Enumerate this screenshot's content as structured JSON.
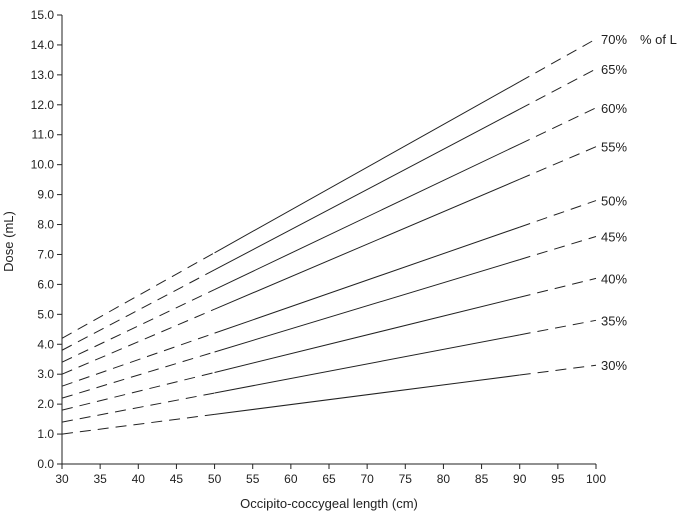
{
  "chart_data": {
    "type": "line",
    "title": "",
    "xlabel": "Occipito-coccygeal length (cm)",
    "ylabel": "Dose (mL)",
    "xlim": [
      30,
      100
    ],
    "ylim": [
      0,
      15
    ],
    "x_ticks": [
      "30",
      "35",
      "40",
      "45",
      "50",
      "55",
      "60",
      "65",
      "70",
      "75",
      "80",
      "85",
      "90",
      "95",
      "100"
    ],
    "y_ticks": [
      "0.0",
      "1.0",
      "2.0",
      "3.0",
      "4.0",
      "5.0",
      "6.0",
      "7.0",
      "8.0",
      "9.0",
      "10.0",
      "11.0",
      "12.0",
      "13.0",
      "14.0",
      "15.0"
    ],
    "legend_suffix": "% of L",
    "solid_range": [
      50,
      90
    ],
    "line_color": "#222222",
    "series": [
      {
        "name": "70%",
        "x": [
          30,
          100
        ],
        "y": [
          4.2,
          14.2
        ]
      },
      {
        "name": "65%",
        "x": [
          30,
          100
        ],
        "y": [
          3.8,
          13.2
        ]
      },
      {
        "name": "60%",
        "x": [
          30,
          100
        ],
        "y": [
          3.4,
          11.9
        ]
      },
      {
        "name": "55%",
        "x": [
          30,
          100
        ],
        "y": [
          3.0,
          10.6
        ]
      },
      {
        "name": "50%",
        "x": [
          30,
          100
        ],
        "y": [
          2.6,
          8.8
        ]
      },
      {
        "name": "45%",
        "x": [
          30,
          100
        ],
        "y": [
          2.2,
          7.6
        ]
      },
      {
        "name": "40%",
        "x": [
          30,
          100
        ],
        "y": [
          1.8,
          6.2
        ]
      },
      {
        "name": "35%",
        "x": [
          30,
          100
        ],
        "y": [
          1.4,
          4.8
        ]
      },
      {
        "name": "30%",
        "x": [
          30,
          100
        ],
        "y": [
          1.0,
          3.3
        ]
      }
    ]
  }
}
